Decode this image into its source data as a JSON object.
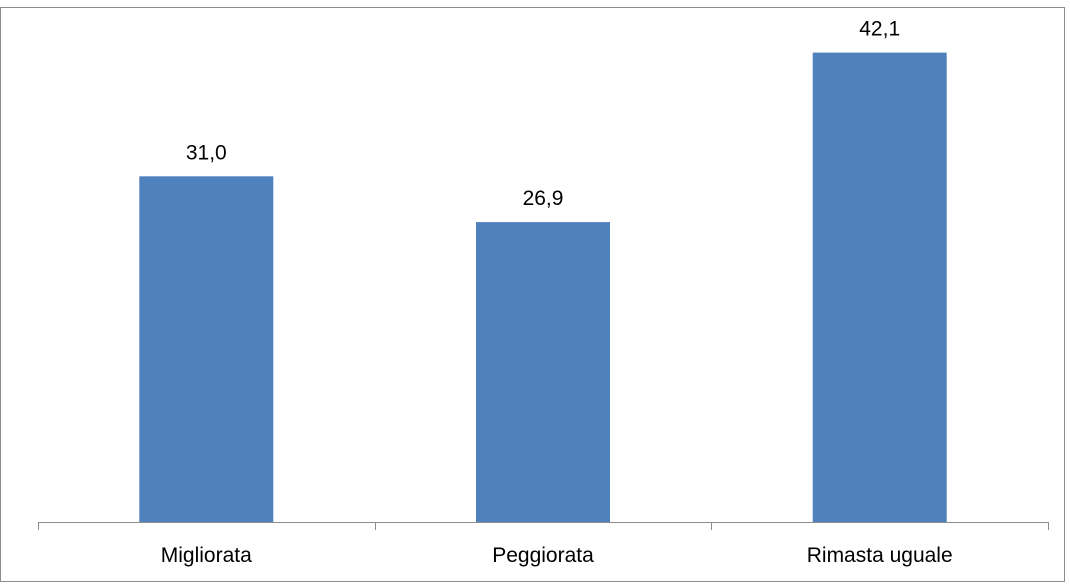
{
  "chart_data": {
    "type": "bar",
    "categories": [
      "Migliorata",
      "Peggiorata",
      "Rimasta uguale"
    ],
    "values": [
      31.0,
      26.9,
      42.1
    ],
    "value_labels": [
      "31,0",
      "26,9",
      "42,1"
    ],
    "title": "",
    "xlabel": "",
    "ylabel": "",
    "ylim": [
      0,
      45
    ],
    "grid": false,
    "legend": "none",
    "colors": {
      "bar": "#4f81bd",
      "axis": "#8c8c8c",
      "text": "#000000"
    }
  }
}
